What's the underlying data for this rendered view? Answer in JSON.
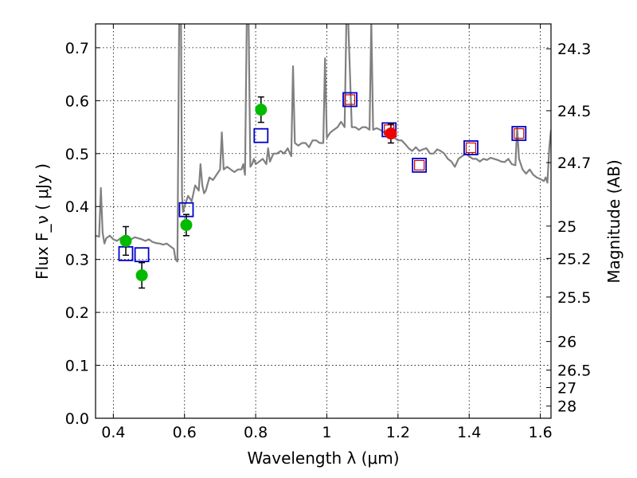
{
  "chart_data": {
    "type": "scatter",
    "title": "",
    "xlabel": "Wavelength  λ (μm)",
    "ylabel": "Flux  F_ν  ( μJy )",
    "y2label": "Magnitude (AB)",
    "xlim": [
      0.35,
      1.63
    ],
    "ylim": [
      0.0,
      0.745
    ],
    "x_ticks": [
      0.4,
      0.6,
      0.8,
      1.0,
      1.2,
      1.4,
      1.6
    ],
    "x_tick_labels": [
      "0.4",
      "0.6",
      "0.8",
      "1",
      "1.2",
      "1.4",
      "1.6"
    ],
    "y_ticks": [
      0.0,
      0.1,
      0.2,
      0.3,
      0.4,
      0.5,
      0.6,
      0.7
    ],
    "y_tick_labels": [
      "0.0",
      "0.1",
      "0.2",
      "0.3",
      "0.4",
      "0.5",
      "0.6",
      "0.7"
    ],
    "right_axis_ticks": [
      {
        "label": "24.3",
        "flux": 0.698
      },
      {
        "label": "24.5",
        "flux": 0.581
      },
      {
        "label": "24.7",
        "flux": 0.483
      },
      {
        "label": "25",
        "flux": 0.363
      },
      {
        "label": "25.2",
        "flux": 0.302
      },
      {
        "label": "25.5",
        "flux": 0.229
      },
      {
        "label": "26",
        "flux": 0.145
      },
      {
        "label": "26.5",
        "flux": 0.091
      },
      {
        "label": "27",
        "flux": 0.058
      },
      {
        "label": "28",
        "flux": 0.023
      }
    ],
    "grid": true,
    "colors": {
      "model": "#808080",
      "green_points": "#00bb00",
      "red_points": "#ee0000",
      "model_boxes": "#0000cc",
      "inner_boxes": "#cc0000",
      "error_bars": "#000000"
    },
    "series": [
      {
        "name": "model spectrum",
        "kind": "line",
        "x": [
          0.35,
          0.36,
          0.365,
          0.37,
          0.375,
          0.38,
          0.39,
          0.4,
          0.41,
          0.42,
          0.43,
          0.44,
          0.45,
          0.46,
          0.47,
          0.48,
          0.49,
          0.5,
          0.51,
          0.52,
          0.53,
          0.54,
          0.55,
          0.56,
          0.57,
          0.575,
          0.58,
          0.585,
          0.59,
          0.593,
          0.596,
          0.6,
          0.61,
          0.62,
          0.63,
          0.64,
          0.645,
          0.65,
          0.655,
          0.66,
          0.67,
          0.68,
          0.69,
          0.7,
          0.705,
          0.71,
          0.72,
          0.73,
          0.74,
          0.75,
          0.76,
          0.765,
          0.77,
          0.775,
          0.78,
          0.785,
          0.79,
          0.795,
          0.8,
          0.81,
          0.82,
          0.83,
          0.835,
          0.84,
          0.85,
          0.86,
          0.87,
          0.88,
          0.89,
          0.9,
          0.905,
          0.91,
          0.92,
          0.93,
          0.94,
          0.95,
          0.96,
          0.97,
          0.98,
          0.99,
          0.995,
          1.0,
          1.01,
          1.02,
          1.03,
          1.04,
          1.05,
          1.055,
          1.06,
          1.07,
          1.08,
          1.09,
          1.1,
          1.11,
          1.12,
          1.125,
          1.13,
          1.14,
          1.15,
          1.16,
          1.17,
          1.18,
          1.19,
          1.2,
          1.21,
          1.22,
          1.23,
          1.24,
          1.25,
          1.26,
          1.27,
          1.28,
          1.29,
          1.3,
          1.31,
          1.32,
          1.33,
          1.34,
          1.35,
          1.36,
          1.37,
          1.38,
          1.39,
          1.4,
          1.41,
          1.42,
          1.43,
          1.44,
          1.45,
          1.46,
          1.47,
          1.48,
          1.49,
          1.5,
          1.51,
          1.52,
          1.53,
          1.535,
          1.54,
          1.55,
          1.56,
          1.57,
          1.58,
          1.59,
          1.6,
          1.61,
          1.615,
          1.62,
          1.625,
          1.63
        ],
        "y": [
          0.345,
          0.343,
          0.435,
          0.35,
          0.33,
          0.34,
          0.345,
          0.338,
          0.335,
          0.34,
          0.342,
          0.34,
          0.338,
          0.342,
          0.34,
          0.338,
          0.335,
          0.338,
          0.333,
          0.331,
          0.33,
          0.328,
          0.33,
          0.325,
          0.32,
          0.3,
          0.296,
          0.75,
          0.75,
          0.42,
          0.39,
          0.4,
          0.42,
          0.41,
          0.44,
          0.43,
          0.48,
          0.44,
          0.425,
          0.43,
          0.455,
          0.45,
          0.46,
          0.47,
          0.54,
          0.47,
          0.475,
          0.47,
          0.465,
          0.47,
          0.47,
          0.48,
          0.46,
          0.75,
          0.75,
          0.475,
          0.48,
          0.49,
          0.48,
          0.485,
          0.49,
          0.48,
          0.51,
          0.485,
          0.5,
          0.5,
          0.505,
          0.5,
          0.51,
          0.495,
          0.665,
          0.52,
          0.515,
          0.52,
          0.52,
          0.512,
          0.525,
          0.525,
          0.52,
          0.52,
          0.68,
          0.53,
          0.54,
          0.545,
          0.55,
          0.56,
          0.55,
          0.75,
          0.75,
          0.55,
          0.55,
          0.545,
          0.55,
          0.55,
          0.545,
          0.75,
          0.545,
          0.548,
          0.545,
          0.54,
          0.545,
          0.538,
          0.53,
          0.525,
          0.525,
          0.518,
          0.51,
          0.505,
          0.512,
          0.505,
          0.508,
          0.51,
          0.5,
          0.5,
          0.508,
          0.505,
          0.5,
          0.49,
          0.485,
          0.475,
          0.49,
          0.495,
          0.5,
          0.495,
          0.49,
          0.49,
          0.485,
          0.49,
          0.488,
          0.492,
          0.49,
          0.488,
          0.485,
          0.484,
          0.49,
          0.48,
          0.478,
          0.55,
          0.49,
          0.47,
          0.462,
          0.47,
          0.46,
          0.455,
          0.452,
          0.448,
          0.455,
          0.445,
          0.51,
          0.545
        ]
      },
      {
        "name": "observed (green)",
        "kind": "points",
        "x": [
          0.435,
          0.48,
          0.605,
          0.815
        ],
        "y": [
          0.335,
          0.27,
          0.365,
          0.583
        ],
        "yerr": [
          0.027,
          0.024,
          0.02,
          0.024
        ]
      },
      {
        "name": "observed (red)",
        "kind": "points",
        "x": [
          1.18
        ],
        "y": [
          0.538
        ],
        "yerr": [
          0.018
        ]
      },
      {
        "name": "model photometry (blue squares)",
        "kind": "squares",
        "x": [
          0.435,
          0.48,
          0.605,
          0.815,
          1.065,
          1.175,
          1.26,
          1.405,
          1.54
        ],
        "y": [
          0.311,
          0.309,
          0.394,
          0.534,
          0.602,
          0.545,
          0.478,
          0.511,
          0.538
        ]
      },
      {
        "name": "model photometry (red inner squares)",
        "kind": "inner_squares",
        "x": [
          1.065,
          1.175,
          1.26,
          1.405,
          1.54
        ],
        "y": [
          0.602,
          0.545,
          0.478,
          0.511,
          0.538
        ]
      }
    ]
  }
}
